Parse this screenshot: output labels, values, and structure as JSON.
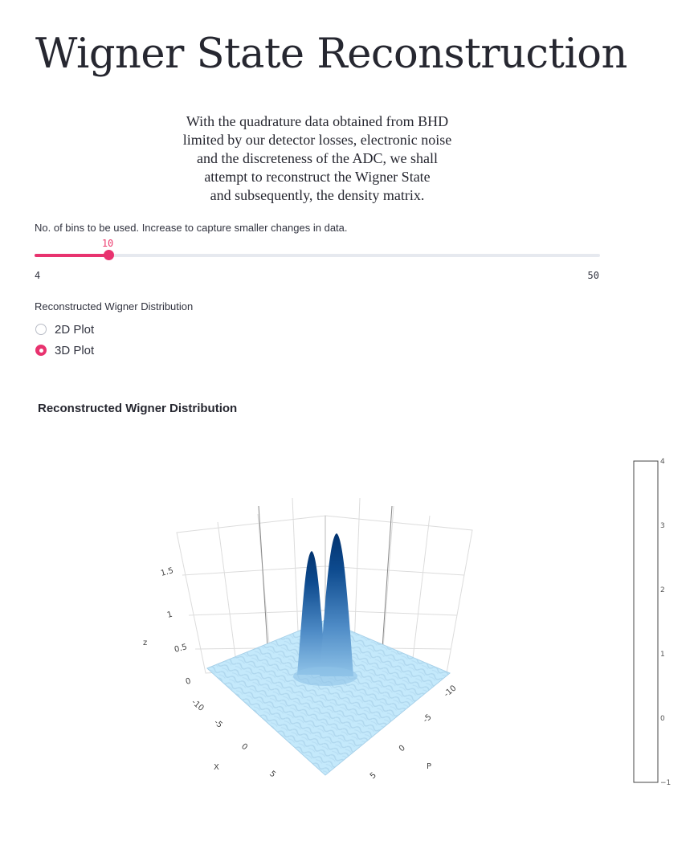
{
  "page": {
    "title": "Wigner State Reconstruction",
    "intro_lines": [
      "With the quadrature data obtained from BHD",
      "limited by our detector losses, electronic noise",
      "and the discreteness of the ADC, we shall",
      "attempt to reconstruct the Wigner State",
      "and subsequently, the density matrix."
    ]
  },
  "bins_slider": {
    "label": "No. of bins to be used. Increase to capture smaller changes in data.",
    "value": 10,
    "value_text": "10",
    "min": 4,
    "min_text": "4",
    "max": 50,
    "max_text": "50",
    "accent_color": "#e8336f"
  },
  "plot_type": {
    "label": "Reconstructed Wigner Distribution",
    "options": [
      "2D Plot",
      "3D Plot"
    ],
    "selected": "3D Plot"
  },
  "chart_data": {
    "type": "surface",
    "title": "Reconstructed Wigner Distribution",
    "xlabel": "X",
    "ylabel": "P",
    "zlabel": "z",
    "x_ticks": [
      "-10",
      "-5",
      "0",
      "5"
    ],
    "y_ticks": [
      "-10",
      "-5",
      "0",
      "5"
    ],
    "z_ticks": [
      "0",
      "0.5",
      "1",
      "1.5"
    ],
    "xlim": [
      -12,
      12
    ],
    "ylim": [
      -12,
      12
    ],
    "zlim": [
      0,
      1.8
    ],
    "peaks": [
      {
        "x": -1.5,
        "p": 0,
        "z": 1.6
      },
      {
        "x": 1.5,
        "p": 0,
        "z": 1.7
      }
    ],
    "colorbar_ticks": [
      "4",
      "3",
      "2",
      "1",
      "0",
      "−1"
    ],
    "colorbar_range": [
      -1,
      4
    ],
    "colorscale": [
      "#cfeefc",
      "#9ccdf0",
      "#4e8bc6",
      "#0d4a8e",
      "#02336f"
    ]
  }
}
